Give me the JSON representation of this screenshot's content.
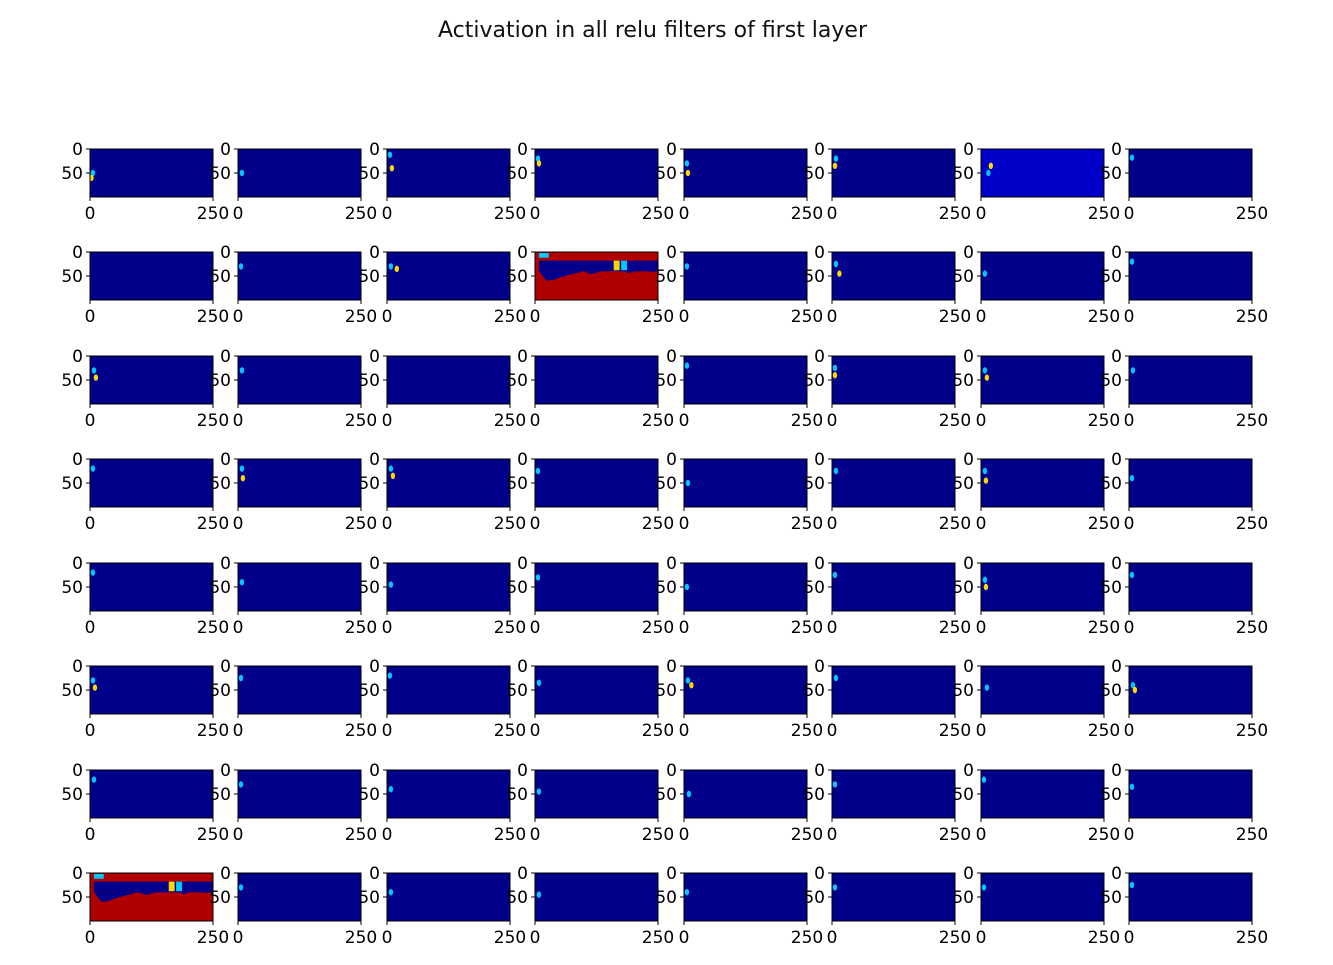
{
  "title": "Activation in all relu filters of first layer",
  "chart_data": {
    "type": "heatmap",
    "title": "Activation in all relu filters of first layer",
    "layout": {
      "rows": 8,
      "cols": 8
    },
    "colormap": "jet",
    "colors": {
      "background": "#00008b",
      "faint": "#0000c8",
      "hot": "#b00000",
      "mid": "#00c8ff",
      "warm": "#ffd700"
    },
    "x_ticks": [
      "0",
      "250"
    ],
    "y_ticks": [
      "0",
      "50"
    ],
    "panels": [
      {
        "index": 0,
        "spots": [
          [
            6,
            50
          ],
          [
            3,
            60
          ]
        ]
      },
      {
        "index": 1,
        "spots": [
          [
            8,
            50
          ]
        ]
      },
      {
        "index": 2,
        "spots": [
          [
            6,
            12
          ],
          [
            10,
            40
          ]
        ]
      },
      {
        "index": 3,
        "spots": [
          [
            6,
            20
          ],
          [
            8,
            30
          ]
        ]
      },
      {
        "index": 4,
        "spots": [
          [
            6,
            30
          ],
          [
            8,
            50
          ]
        ]
      },
      {
        "index": 5,
        "spots": [
          [
            8,
            20
          ],
          [
            6,
            35
          ]
        ]
      },
      {
        "index": 6,
        "pattern": "elevated",
        "spots": [
          [
            15,
            50
          ],
          [
            20,
            35
          ]
        ]
      },
      {
        "index": 7,
        "spots": [
          [
            6,
            18
          ]
        ]
      },
      {
        "index": 8,
        "spots": []
      },
      {
        "index": 9,
        "spots": [
          [
            6,
            30
          ]
        ]
      },
      {
        "index": 10,
        "spots": [
          [
            8,
            30
          ],
          [
            20,
            35
          ]
        ]
      },
      {
        "index": 11,
        "pattern": "saturated"
      },
      {
        "index": 12,
        "spots": [
          [
            6,
            30
          ]
        ]
      },
      {
        "index": 13,
        "spots": [
          [
            8,
            25
          ],
          [
            15,
            45
          ]
        ]
      },
      {
        "index": 14,
        "spots": [
          [
            8,
            45
          ]
        ]
      },
      {
        "index": 15,
        "spots": [
          [
            6,
            20
          ]
        ]
      },
      {
        "index": 16,
        "spots": [
          [
            8,
            30
          ],
          [
            12,
            45
          ]
        ]
      },
      {
        "index": 17,
        "spots": [
          [
            8,
            30
          ]
        ]
      },
      {
        "index": 18,
        "spots": []
      },
      {
        "index": 19,
        "spots": []
      },
      {
        "index": 20,
        "spots": [
          [
            6,
            20
          ]
        ]
      },
      {
        "index": 21,
        "spots": [
          [
            6,
            25
          ],
          [
            6,
            40
          ]
        ]
      },
      {
        "index": 22,
        "spots": [
          [
            8,
            30
          ],
          [
            12,
            45
          ]
        ]
      },
      {
        "index": 23,
        "spots": [
          [
            8,
            30
          ]
        ]
      },
      {
        "index": 24,
        "spots": [
          [
            6,
            20
          ]
        ]
      },
      {
        "index": 25,
        "spots": [
          [
            8,
            20
          ],
          [
            10,
            40
          ]
        ]
      },
      {
        "index": 26,
        "spots": [
          [
            8,
            20
          ],
          [
            12,
            35
          ]
        ]
      },
      {
        "index": 27,
        "spots": [
          [
            6,
            25
          ]
        ]
      },
      {
        "index": 28,
        "spots": [
          [
            8,
            50
          ]
        ]
      },
      {
        "index": 29,
        "spots": [
          [
            8,
            25
          ]
        ]
      },
      {
        "index": 30,
        "spots": [
          [
            8,
            25
          ],
          [
            10,
            45
          ]
        ]
      },
      {
        "index": 31,
        "spots": [
          [
            6,
            40
          ]
        ]
      },
      {
        "index": 32,
        "spots": [
          [
            6,
            20
          ]
        ]
      },
      {
        "index": 33,
        "spots": [
          [
            8,
            40
          ]
        ]
      },
      {
        "index": 34,
        "spots": [
          [
            8,
            45
          ]
        ]
      },
      {
        "index": 35,
        "spots": [
          [
            6,
            30
          ]
        ]
      },
      {
        "index": 36,
        "spots": [
          [
            6,
            50
          ]
        ]
      },
      {
        "index": 37,
        "spots": [
          [
            6,
            25
          ]
        ]
      },
      {
        "index": 38,
        "spots": [
          [
            8,
            35
          ],
          [
            10,
            50
          ]
        ]
      },
      {
        "index": 39,
        "spots": [
          [
            6,
            25
          ]
        ]
      },
      {
        "index": 40,
        "spots": [
          [
            6,
            30
          ],
          [
            10,
            45
          ]
        ]
      },
      {
        "index": 41,
        "spots": [
          [
            6,
            25
          ]
        ]
      },
      {
        "index": 42,
        "spots": [
          [
            6,
            20
          ]
        ]
      },
      {
        "index": 43,
        "spots": [
          [
            8,
            35
          ]
        ]
      },
      {
        "index": 44,
        "spots": [
          [
            8,
            30
          ],
          [
            15,
            40
          ]
        ]
      },
      {
        "index": 45,
        "spots": [
          [
            8,
            25
          ]
        ]
      },
      {
        "index": 46,
        "spots": [
          [
            12,
            45
          ]
        ]
      },
      {
        "index": 47,
        "spots": [
          [
            8,
            40
          ],
          [
            12,
            50
          ]
        ]
      },
      {
        "index": 48,
        "spots": [
          [
            8,
            20
          ]
        ]
      },
      {
        "index": 49,
        "spots": [
          [
            6,
            30
          ]
        ]
      },
      {
        "index": 50,
        "spots": [
          [
            8,
            40
          ]
        ]
      },
      {
        "index": 51,
        "spots": [
          [
            8,
            45
          ]
        ]
      },
      {
        "index": 52,
        "spots": [
          [
            10,
            50
          ]
        ]
      },
      {
        "index": 53,
        "spots": [
          [
            6,
            30
          ]
        ]
      },
      {
        "index": 54,
        "spots": [
          [
            6,
            20
          ]
        ]
      },
      {
        "index": 55,
        "spots": [
          [
            6,
            35
          ]
        ]
      },
      {
        "index": 56,
        "pattern": "saturated"
      },
      {
        "index": 57,
        "spots": [
          [
            6,
            30
          ]
        ]
      },
      {
        "index": 58,
        "spots": [
          [
            8,
            40
          ]
        ]
      },
      {
        "index": 59,
        "spots": [
          [
            8,
            45
          ]
        ]
      },
      {
        "index": 60,
        "spots": [
          [
            6,
            40
          ]
        ]
      },
      {
        "index": 61,
        "spots": [
          [
            6,
            30
          ]
        ]
      },
      {
        "index": 62,
        "spots": [
          [
            6,
            30
          ]
        ]
      },
      {
        "index": 63,
        "spots": [
          [
            6,
            25
          ]
        ]
      }
    ]
  }
}
